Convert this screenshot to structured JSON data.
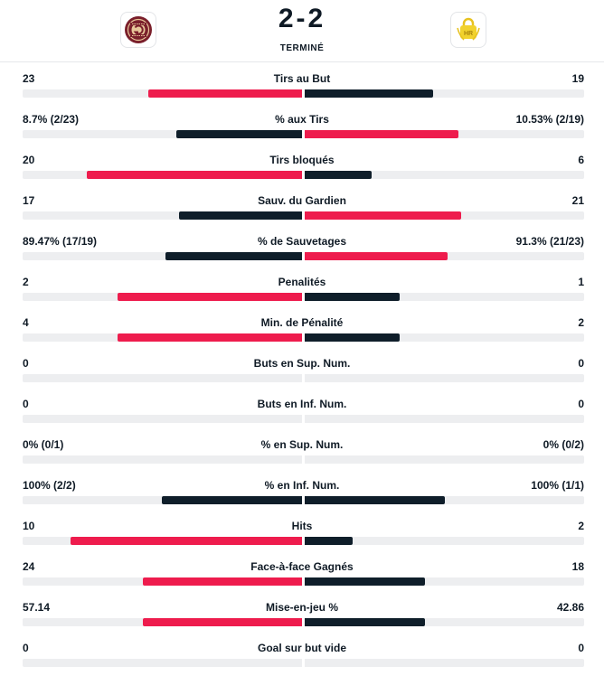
{
  "match": {
    "score": "2-2",
    "status": "TERMINÉ",
    "home_logo_icon": "geneve-servette-crest-icon",
    "away_logo_icon": "yellow-lock-crest-icon"
  },
  "colors": {
    "winner_bar": "#ee1c4d",
    "loser_bar": "#0f1e2a",
    "track": "#edeef0"
  },
  "stats": [
    {
      "label": "Tirs au But",
      "home": "23",
      "away": "19",
      "home_share": 0.55,
      "away_share": 0.46
    },
    {
      "label": "% aux Tirs",
      "home": "8.7% (2/23)",
      "away": "10.53% (2/19)",
      "home_share": 0.45,
      "away_share": 0.55
    },
    {
      "label": "Tirs bloqués",
      "home": "20",
      "away": "6",
      "home_share": 0.77,
      "away_share": 0.24
    },
    {
      "label": "Sauv. du Gardien",
      "home": "17",
      "away": "21",
      "home_share": 0.44,
      "away_share": 0.56
    },
    {
      "label": "% de Sauvetages",
      "home": "89.47% (17/19)",
      "away": "91.3% (21/23)",
      "home_share": 0.49,
      "away_share": 0.51
    },
    {
      "label": "Penalités",
      "home": "2",
      "away": "1",
      "home_share": 0.66,
      "away_share": 0.34
    },
    {
      "label": "Min. de Pénalité",
      "home": "4",
      "away": "2",
      "home_share": 0.66,
      "away_share": 0.34
    },
    {
      "label": "Buts en Sup. Num.",
      "home": "0",
      "away": "0",
      "home_share": 0,
      "away_share": 0
    },
    {
      "label": "Buts en Inf. Num.",
      "home": "0",
      "away": "0",
      "home_share": 0,
      "away_share": 0
    },
    {
      "label": "% en Sup. Num.",
      "home": "0% (0/1)",
      "away": "0% (0/2)",
      "home_share": 0,
      "away_share": 0
    },
    {
      "label": "% en Inf. Num.",
      "home": "100% (2/2)",
      "away": "100% (1/1)",
      "home_share": 0.5,
      "away_share": 0.5
    },
    {
      "label": "Hits",
      "home": "10",
      "away": "2",
      "home_share": 0.83,
      "away_share": 0.17
    },
    {
      "label": "Face-à-face Gagnés",
      "home": "24",
      "away": "18",
      "home_share": 0.57,
      "away_share": 0.43
    },
    {
      "label": "Mise-en-jeu %",
      "home": "57.14",
      "away": "42.86",
      "home_share": 0.57,
      "away_share": 0.43
    },
    {
      "label": "Goal sur but vide",
      "home": "0",
      "away": "0",
      "home_share": 0,
      "away_share": 0
    }
  ]
}
